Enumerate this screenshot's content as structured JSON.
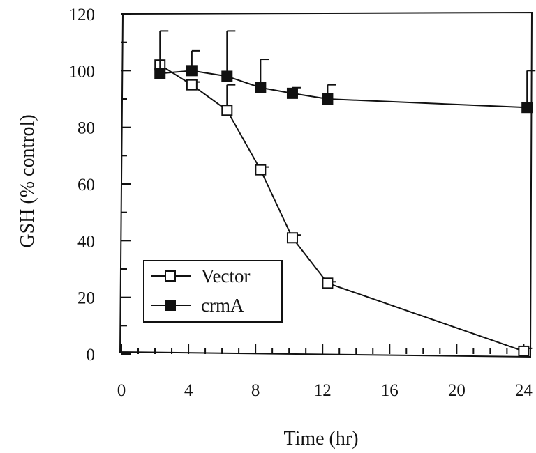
{
  "chart_data": {
    "type": "line",
    "xlabel": "Time (hr)",
    "ylabel": "GSH (% control)",
    "xlim": [
      0,
      24.4
    ],
    "ylim": [
      0,
      120
    ],
    "xticks": [
      0,
      4,
      8,
      12,
      16,
      20,
      24
    ],
    "yticks": [
      0,
      20,
      40,
      60,
      80,
      100,
      120
    ],
    "grid": false,
    "legend_position": "bottom-left",
    "series": [
      {
        "name": "Vector",
        "marker": "open-square",
        "points": [
          {
            "x": 2.3,
            "y": 102,
            "err": 0
          },
          {
            "x": 4.2,
            "y": 95,
            "err": 1
          },
          {
            "x": 6.3,
            "y": 86,
            "err": 9
          },
          {
            "x": 8.3,
            "y": 65,
            "err": 1
          },
          {
            "x": 10.2,
            "y": 41,
            "err": 1
          },
          {
            "x": 12.3,
            "y": 25,
            "err": 0.5
          },
          {
            "x": 24,
            "y": 1,
            "err": 1
          }
        ]
      },
      {
        "name": "crmA",
        "marker": "filled-square",
        "points": [
          {
            "x": 2.3,
            "y": 99,
            "err": 15
          },
          {
            "x": 4.2,
            "y": 100,
            "err": 7
          },
          {
            "x": 6.3,
            "y": 98,
            "err": 16
          },
          {
            "x": 8.3,
            "y": 94,
            "err": 10
          },
          {
            "x": 10.2,
            "y": 92,
            "err": 2
          },
          {
            "x": 12.3,
            "y": 90,
            "err": 5
          },
          {
            "x": 24.2,
            "y": 87,
            "err": 13
          }
        ]
      }
    ]
  }
}
